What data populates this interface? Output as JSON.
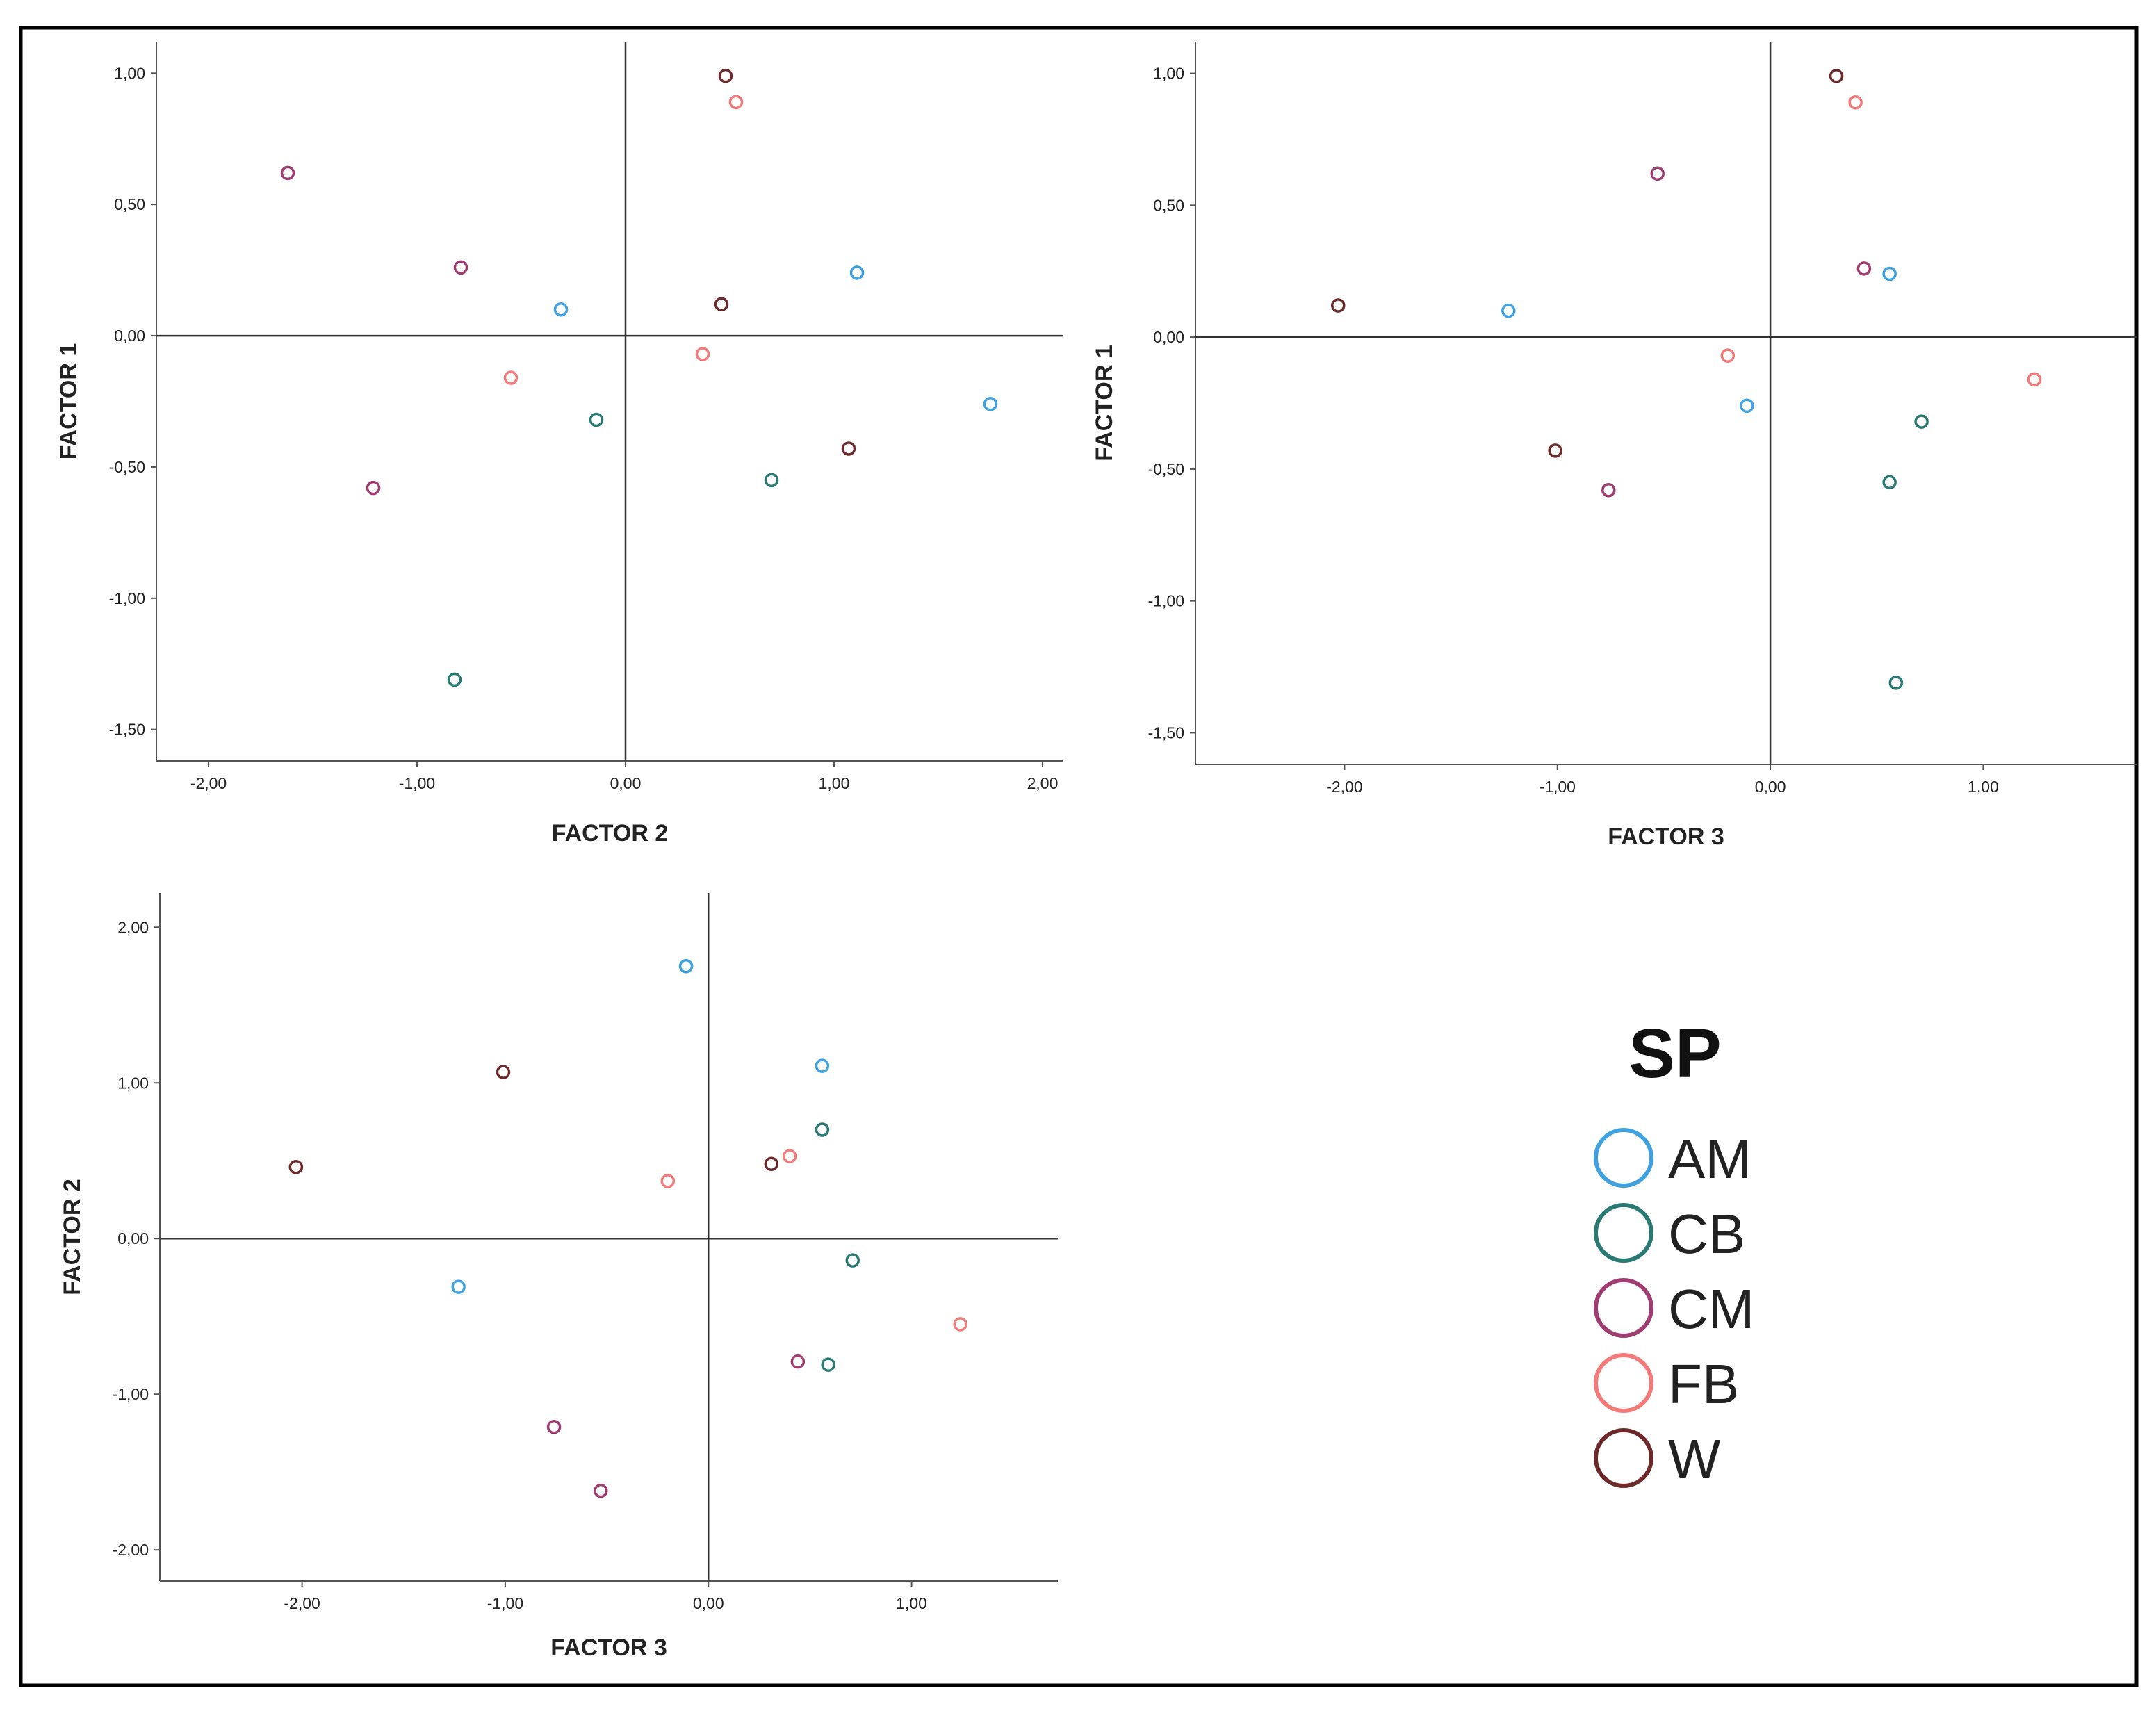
{
  "chart_data": [
    {
      "type": "scatter",
      "xlabel": "FACTOR 2",
      "ylabel": "FACTOR 1",
      "xlim": [
        -2.25,
        2.1
      ],
      "ylim": [
        -1.62,
        1.12
      ],
      "xticks": [
        -2,
        -1,
        0,
        1,
        2
      ],
      "yticks": [
        -1.5,
        -1,
        -0.5,
        0,
        0.5,
        1
      ],
      "xtick_labels": [
        "-2,00",
        "-1,00",
        "0,00",
        "1,00",
        "2,00"
      ],
      "ytick_labels": [
        "-1,50",
        "-1,00",
        "-0,50",
        "0,00",
        "0,50",
        "1,00"
      ],
      "series": [
        {
          "name": "AM",
          "points": [
            [
              -0.31,
              0.1
            ],
            [
              1.11,
              0.24
            ],
            [
              1.75,
              -0.26
            ]
          ]
        },
        {
          "name": "CB",
          "points": [
            [
              -0.14,
              -0.32
            ],
            [
              0.7,
              -0.55
            ],
            [
              -0.82,
              -1.31
            ]
          ]
        },
        {
          "name": "CM",
          "points": [
            [
              -1.62,
              0.62
            ],
            [
              -0.79,
              0.26
            ],
            [
              -1.21,
              -0.58
            ]
          ]
        },
        {
          "name": "FB",
          "points": [
            [
              0.53,
              0.89
            ],
            [
              -0.55,
              -0.16
            ],
            [
              0.37,
              -0.07
            ]
          ]
        },
        {
          "name": "W",
          "points": [
            [
              0.48,
              0.99
            ],
            [
              0.46,
              0.12
            ],
            [
              1.07,
              -0.43
            ]
          ]
        }
      ]
    },
    {
      "type": "scatter",
      "xlabel": "FACTOR 3",
      "ylabel": "FACTOR 1",
      "xlim": [
        -2.7,
        1.72
      ],
      "ylim": [
        -1.62,
        1.12
      ],
      "xticks": [
        -2,
        -1,
        0,
        1
      ],
      "yticks": [
        -1.5,
        -1,
        -0.5,
        0,
        0.5,
        1
      ],
      "xtick_labels": [
        "-2,00",
        "-1,00",
        "0,00",
        "1,00"
      ],
      "ytick_labels": [
        "-1,50",
        "-1,00",
        "-0,50",
        "0,00",
        "0,50",
        "1,00"
      ],
      "series": [
        {
          "name": "AM",
          "points": [
            [
              -1.23,
              0.1
            ],
            [
              0.56,
              0.24
            ],
            [
              -0.11,
              -0.26
            ]
          ]
        },
        {
          "name": "CB",
          "points": [
            [
              0.71,
              -0.32
            ],
            [
              0.56,
              -0.55
            ],
            [
              0.59,
              -1.31
            ]
          ]
        },
        {
          "name": "CM",
          "points": [
            [
              -0.53,
              0.62
            ],
            [
              0.44,
              0.26
            ],
            [
              -0.76,
              -0.58
            ]
          ]
        },
        {
          "name": "FB",
          "points": [
            [
              0.4,
              0.89
            ],
            [
              -0.2,
              -0.07
            ],
            [
              1.24,
              -0.16
            ]
          ]
        },
        {
          "name": "W",
          "points": [
            [
              0.31,
              0.99
            ],
            [
              -2.03,
              0.12
            ],
            [
              -1.01,
              -0.43
            ]
          ]
        }
      ]
    },
    {
      "type": "scatter",
      "xlabel": "FACTOR 3",
      "ylabel": "FACTOR 2",
      "xlim": [
        -2.7,
        1.72
      ],
      "ylim": [
        -2.2,
        2.22
      ],
      "xticks": [
        -2,
        -1,
        0,
        1
      ],
      "yticks": [
        -2,
        -1,
        0,
        1,
        2
      ],
      "xtick_labels": [
        "-2,00",
        "-1,00",
        "0,00",
        "1,00"
      ],
      "ytick_labels": [
        "-2,00",
        "-1,00",
        "0,00",
        "1,00",
        "2,00"
      ],
      "series": [
        {
          "name": "AM",
          "points": [
            [
              -0.11,
              1.75
            ],
            [
              0.56,
              1.11
            ],
            [
              -1.23,
              -0.31
            ]
          ]
        },
        {
          "name": "CB",
          "points": [
            [
              0.56,
              0.7
            ],
            [
              0.71,
              -0.14
            ],
            [
              0.59,
              -0.81
            ]
          ]
        },
        {
          "name": "CM",
          "points": [
            [
              0.44,
              -0.79
            ],
            [
              -0.76,
              -1.21
            ],
            [
              -0.53,
              -1.62
            ]
          ]
        },
        {
          "name": "FB",
          "points": [
            [
              0.4,
              0.53
            ],
            [
              -0.2,
              0.37
            ],
            [
              1.24,
              -0.55
            ]
          ]
        },
        {
          "name": "W",
          "points": [
            [
              -1.01,
              1.07
            ],
            [
              -2.03,
              0.46
            ],
            [
              0.31,
              0.48
            ]
          ]
        }
      ]
    }
  ],
  "legend": {
    "title": "SP",
    "items": [
      {
        "label": "AM",
        "color": "#3ea2e2"
      },
      {
        "label": "CB",
        "color": "#2a7a74"
      },
      {
        "label": "CM",
        "color": "#a03c72"
      },
      {
        "label": "FB",
        "color": "#f47a7a"
      },
      {
        "label": "W",
        "color": "#6e2a2a"
      }
    ]
  }
}
